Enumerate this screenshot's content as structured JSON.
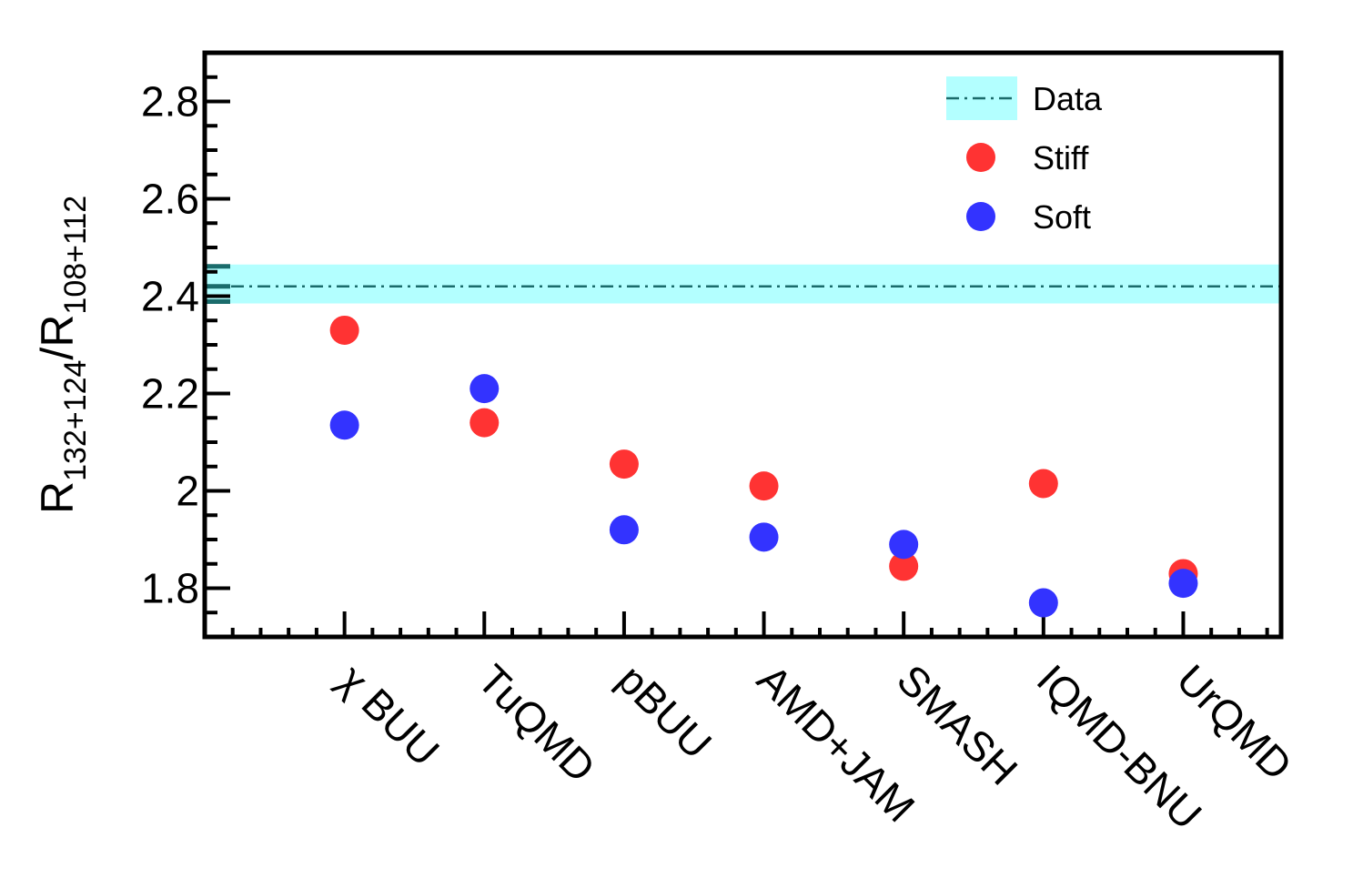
{
  "chart_data": {
    "type": "scatter",
    "ylabel": {
      "part1": "R",
      "sub1": "132+124",
      "slash": "/R",
      "sub2": "108+112"
    },
    "xlabel": "",
    "ylim": [
      1.7,
      2.9
    ],
    "y_ticks": [
      "1.8",
      "2",
      "2.2",
      "2.4",
      "2.6",
      "2.8"
    ],
    "y_tick_values": [
      1.8,
      2.0,
      2.2,
      2.4,
      2.6,
      2.8
    ],
    "categories": [
      "χ BUU",
      "TuQMD",
      "pBUU",
      "AMD+JAM",
      "SMASH",
      "IQMD-BNU",
      "UrQMD"
    ],
    "series": [
      {
        "name": "Stiff",
        "color": "#ff3333",
        "values": [
          2.33,
          2.14,
          2.055,
          2.01,
          1.845,
          2.015,
          1.83
        ]
      },
      {
        "name": "Soft",
        "color": "#3333ff",
        "values": [
          2.135,
          2.21,
          1.92,
          1.905,
          1.89,
          1.77,
          1.81
        ]
      }
    ],
    "reference": {
      "name": "Data",
      "value": 2.42,
      "band": [
        2.385,
        2.465
      ],
      "line_color": "#1a6b6b",
      "band_color": "#b3ffff"
    },
    "legend": {
      "placement": "top-right",
      "entries": [
        "Data",
        "Stiff",
        "Soft"
      ]
    },
    "grid": false
  }
}
